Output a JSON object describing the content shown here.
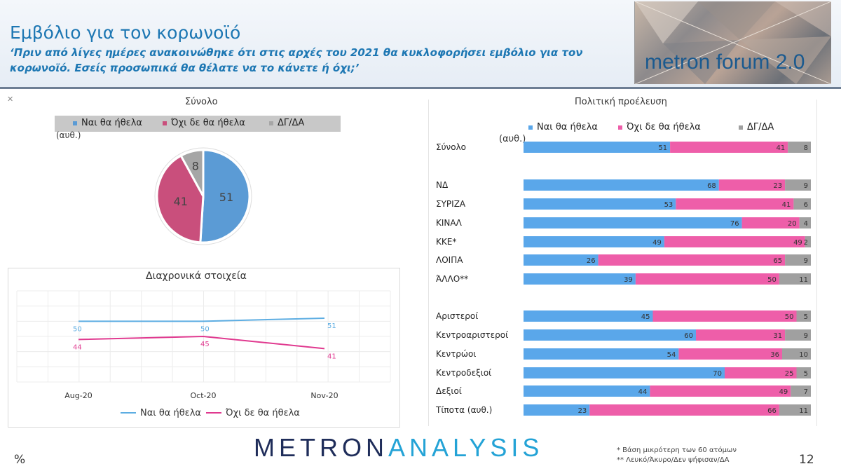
{
  "header": {
    "title": "Εμβόλιο για τον κορωνοϊό",
    "subtitle": "‘Πριν από λίγες ημέρες ανακοινώθηκε ότι στις αρχές του 2021 θα κυκλοφορήσει εμβόλιο για τον κορωνοϊό. Εσείς προσωπικά θα θέλατε να το κάνετε ή όχι;’",
    "logo_text": "metron forum 2.0"
  },
  "colors": {
    "yes": "#5b9bd5",
    "no": "#c94f7c",
    "dk": "#a6a6a6",
    "yes_bar": "#5aa7ea",
    "no_bar": "#ee5ea9",
    "dk_bar": "#a0a0a0",
    "line_yes": "#5dade2",
    "line_no": "#e0398f"
  },
  "pie_panel": {
    "title": "Σύνολο",
    "legend": [
      "Ναι θα ήθελα",
      "Όχι δε θα ήθελα",
      "ΔΓ/ΔΑ"
    ],
    "note": "(αυθ.)"
  },
  "line_panel": {
    "title": "Διαχρονικά στοιχεία",
    "legend": [
      "Ναι θα ήθελα",
      "Όχι δε θα ήθελα"
    ]
  },
  "bar_panel": {
    "title": "Πολιτική προέλευση",
    "legend": [
      "Ναι θα ήθελα",
      "Όχι δε θα ήθελα",
      "ΔΓ/ΔΑ"
    ],
    "note": "(αυθ.)"
  },
  "chart_data": [
    {
      "type": "pie",
      "title": "Σύνολο",
      "labels": [
        "Ναι θα ήθελα",
        "Όχι δε θα ήθελα",
        "ΔΓ/ΔΑ"
      ],
      "values": [
        51,
        41,
        8
      ]
    },
    {
      "type": "line",
      "title": "Διαχρονικά στοιχεία",
      "x": [
        "Aug-20",
        "Oct-20",
        "Nov-20"
      ],
      "series": [
        {
          "name": "Ναι θα ήθελα",
          "values": [
            50,
            50,
            51
          ]
        },
        {
          "name": "Όχι δε θα ήθελα",
          "values": [
            44,
            45,
            41
          ]
        }
      ]
    },
    {
      "type": "bar",
      "stacked": true,
      "orientation": "horizontal",
      "title": "Πολιτική προέλευση",
      "categories": [
        "Σύνολο",
        "ΝΔ",
        "ΣΥΡΙΖΑ",
        "ΚΙΝΑΛ",
        "ΚΚΕ*",
        "ΛΟΙΠΑ",
        "ΆΛΛΟ**",
        "Αριστεροί",
        "Κεντροαριστεροί",
        "Κεντρώοι",
        "Κεντροδεξιοί",
        "Δεξιοί",
        "Τίποτα (αυθ.)"
      ],
      "series": [
        {
          "name": "Ναι θα ήθελα",
          "values": [
            51,
            68,
            53,
            76,
            49,
            26,
            39,
            45,
            60,
            54,
            70,
            44,
            23
          ]
        },
        {
          "name": "Όχι δε θα ήθελα",
          "values": [
            41,
            23,
            41,
            20,
            49,
            65,
            50,
            50,
            31,
            36,
            25,
            49,
            66
          ]
        },
        {
          "name": "ΔΓ/ΔΑ",
          "values": [
            8,
            9,
            6,
            4,
            2,
            9,
            11,
            5,
            9,
            10,
            5,
            7,
            11
          ]
        }
      ]
    }
  ],
  "footer": {
    "brand_part1": "METRON",
    "brand_part2": "ANALYSIS",
    "footnote1": "*  Βάση μικρότερη των 60 ατόμων",
    "footnote2": "** Λευκό/Άκυρο/Δεν ψήφισαν/ΔΑ",
    "percent_sign": "%",
    "page_number": "12"
  }
}
